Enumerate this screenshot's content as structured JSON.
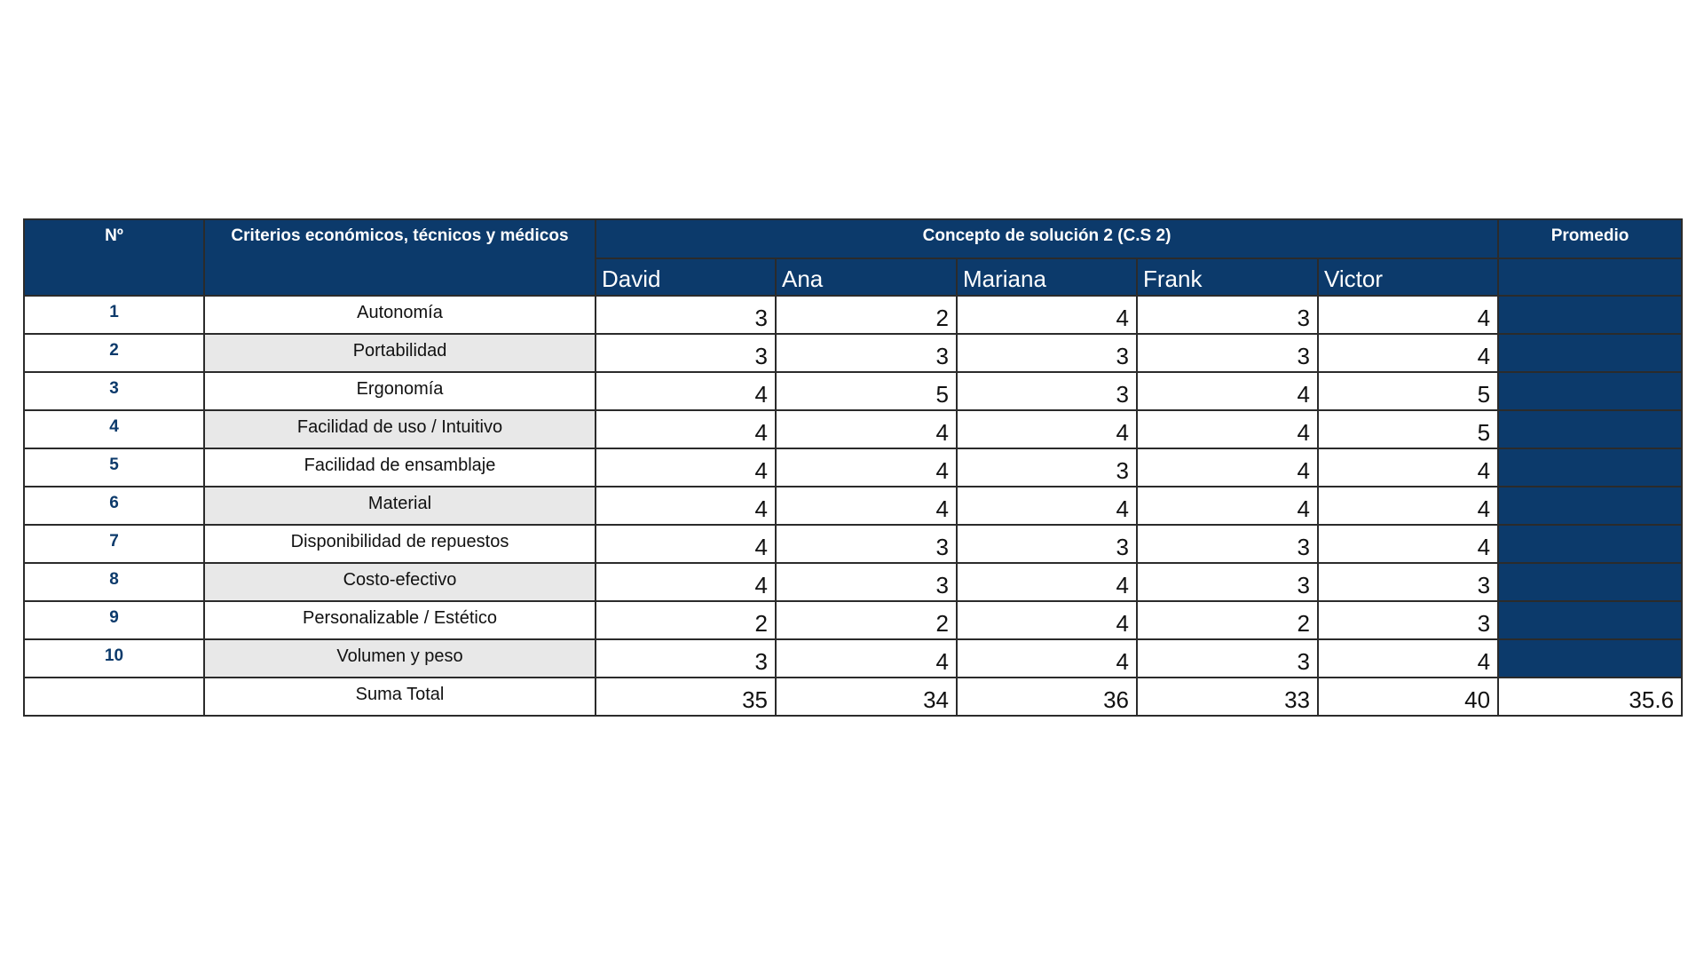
{
  "header": {
    "no": "Nº",
    "criteria": "Criterios económicos, técnicos y médicos",
    "concept": "Concepto de solución 2 (C.S 2)",
    "average": "Promedio",
    "evaluators": [
      "David",
      "Ana",
      "Mariana",
      "Frank",
      "Victor"
    ]
  },
  "colors": {
    "header_bg": "#0c3a6b",
    "shaded_row": "#e8e8e8",
    "number_text": "#0c3a6b"
  },
  "rows": [
    {
      "n": "1",
      "criterion": "Autonomía",
      "scores": [
        "3",
        "2",
        "4",
        "3",
        "4"
      ]
    },
    {
      "n": "2",
      "criterion": "Portabilidad",
      "scores": [
        "3",
        "3",
        "3",
        "3",
        "4"
      ]
    },
    {
      "n": "3",
      "criterion": "Ergonomía",
      "scores": [
        "4",
        "5",
        "3",
        "4",
        "5"
      ]
    },
    {
      "n": "4",
      "criterion": "Facilidad de uso / Intuitivo",
      "scores": [
        "4",
        "4",
        "4",
        "4",
        "5"
      ]
    },
    {
      "n": "5",
      "criterion": "Facilidad de ensamblaje",
      "scores": [
        "4",
        "4",
        "3",
        "4",
        "4"
      ]
    },
    {
      "n": "6",
      "criterion": "Material",
      "scores": [
        "4",
        "4",
        "4",
        "4",
        "4"
      ]
    },
    {
      "n": "7",
      "criterion": "Disponibilidad de repuestos",
      "scores": [
        "4",
        "3",
        "3",
        "3",
        "4"
      ]
    },
    {
      "n": "8",
      "criterion": "Costo-efectivo",
      "scores": [
        "4",
        "3",
        "4",
        "3",
        "3"
      ]
    },
    {
      "n": "9",
      "criterion": "Personalizable / Estético",
      "scores": [
        "2",
        "2",
        "4",
        "2",
        "3"
      ]
    },
    {
      "n": "10",
      "criterion": "Volumen y peso",
      "scores": [
        "3",
        "4",
        "4",
        "3",
        "4"
      ]
    }
  ],
  "total": {
    "label": "Suma Total",
    "sums": [
      "35",
      "34",
      "36",
      "33",
      "40"
    ],
    "average": "35.6"
  }
}
